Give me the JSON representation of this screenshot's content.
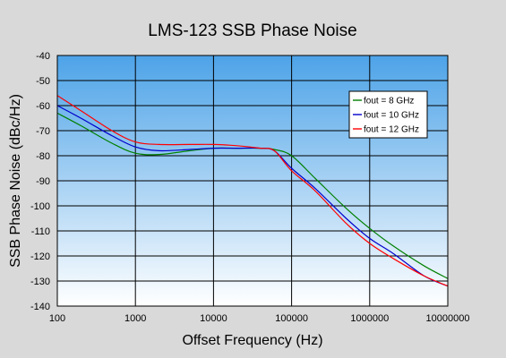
{
  "chart_data": {
    "type": "line",
    "title": "LMS-123 SSB Phase Noise",
    "xlabel": "Offset Frequency (Hz)",
    "ylabel": "SSB Phase Noise (dBc/Hz)",
    "x_scale": "log",
    "xlim": [
      100,
      10000000
    ],
    "ylim": [
      -140,
      -40
    ],
    "x_ticks": [
      100,
      1000,
      10000,
      100000,
      1000000,
      10000000
    ],
    "x_tick_labels": [
      "100",
      "1000",
      "10000",
      "100000",
      "1000000",
      "10000000"
    ],
    "y_ticks": [
      -40,
      -50,
      -60,
      -70,
      -80,
      -90,
      -100,
      -110,
      -120,
      -130,
      -140
    ],
    "y_tick_labels": [
      "-40",
      "-50",
      "-60",
      "-70",
      "-80",
      "-90",
      "-100",
      "-110",
      "-120",
      "-130",
      "-140"
    ],
    "grid": true,
    "legend_position": "top-right",
    "colors": {
      "plot_bg_top": "#4da3e8",
      "plot_bg_bottom": "#ffffff",
      "page_bg": "#d9d9d9"
    },
    "series": [
      {
        "name": "fout = 8 GHz",
        "color": "#008000",
        "x": [
          100,
          200,
          500,
          1000,
          2000,
          5000,
          10000,
          20000,
          40000,
          60000,
          100000,
          200000,
          500000,
          1000000,
          2000000,
          5000000,
          10000000
        ],
        "y": [
          -63,
          -68,
          -75,
          -79,
          -79.5,
          -78,
          -77,
          -77,
          -77,
          -77.5,
          -80,
          -89,
          -101,
          -109,
          -116,
          -124,
          -129
        ]
      },
      {
        "name": "fout = 10 GHz",
        "color": "#0000cc",
        "x": [
          100,
          200,
          500,
          1000,
          2000,
          5000,
          10000,
          20000,
          40000,
          60000,
          100000,
          200000,
          500000,
          1000000,
          2000000,
          5000000,
          10000000
        ],
        "y": [
          -60,
          -65,
          -72,
          -76.5,
          -78,
          -77.5,
          -77,
          -77,
          -77,
          -78,
          -85,
          -93,
          -105,
          -113,
          -119,
          -128,
          -132
        ]
      },
      {
        "name": "fout = 12 GHz",
        "color": "#ff0000",
        "x": [
          100,
          200,
          500,
          1000,
          2000,
          5000,
          10000,
          20000,
          40000,
          60000,
          100000,
          200000,
          500000,
          1000000,
          2000000,
          5000000,
          10000000
        ],
        "y": [
          -56,
          -62,
          -70,
          -74.5,
          -75.5,
          -75.5,
          -75.5,
          -76,
          -77,
          -78,
          -86,
          -94,
          -107,
          -115,
          -121,
          -128,
          -132
        ]
      }
    ]
  }
}
